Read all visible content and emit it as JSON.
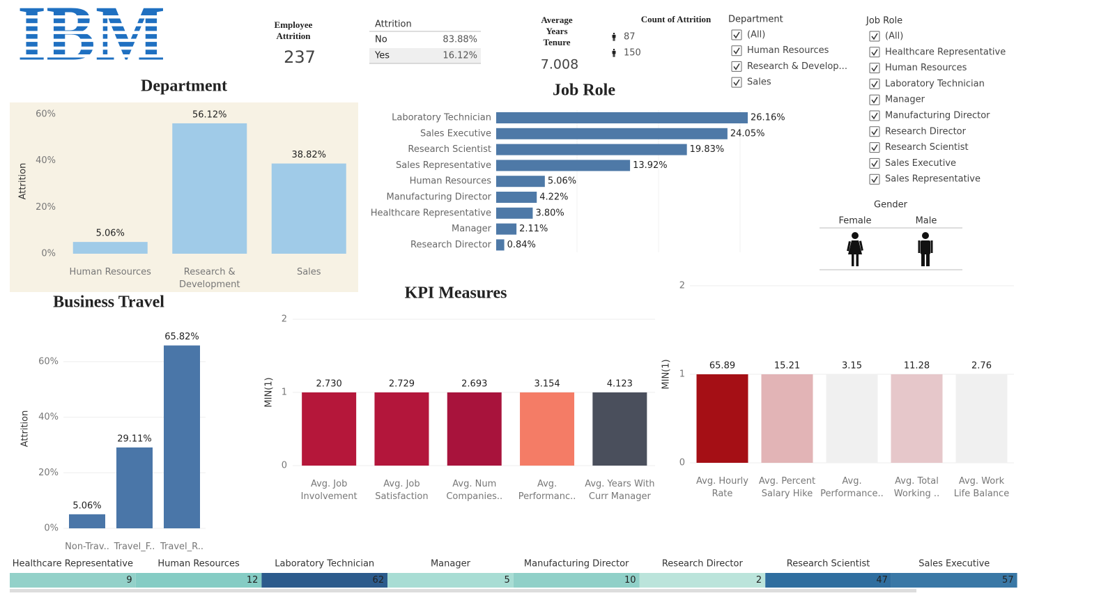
{
  "logo": "IBM",
  "employee_attrition": {
    "label": "Employee Attrition",
    "value": 237
  },
  "attrition_table": {
    "title": "Attrition",
    "rows": [
      [
        "No",
        "83.88%"
      ],
      [
        "Yes",
        "16.12%"
      ]
    ]
  },
  "average_tenure": {
    "label": "Average Years Tenure",
    "value": 7.008
  },
  "count_of_attrition": {
    "title": "Count of Attrition",
    "rows": [
      87,
      150
    ]
  },
  "department_filter": {
    "title": "Department",
    "items": [
      "(All)",
      "Human Resources",
      "Research & Develop...",
      "Sales"
    ]
  },
  "job_role_filter": {
    "title": "Job Role",
    "items": [
      "(All)",
      "Healthcare Representative",
      "Human Resources",
      "Laboratory Technician",
      "Manager",
      "Manufacturing Director",
      "Research Director",
      "Research Scientist",
      "Sales Executive",
      "Sales Representative"
    ]
  },
  "gender": {
    "title": "Gender",
    "labels": [
      "Female",
      "Male"
    ]
  },
  "chart_data": [
    {
      "type": "bar",
      "title": "Department",
      "y_label": "Attrition",
      "categories": [
        "Human Resources",
        "Research & Development",
        "Sales"
      ],
      "values": [
        5.06,
        56.12,
        38.82
      ],
      "value_labels": [
        "5.06%",
        "56.12%",
        "38.82%"
      ],
      "color": "#a0cbe8",
      "background": "#f7f2e4",
      "ylim": [
        0,
        66
      ],
      "yticks": [
        {
          "value": 0,
          "label": "0%"
        },
        {
          "value": 20,
          "label": "20%"
        },
        {
          "value": 40,
          "label": "40%"
        },
        {
          "value": 60,
          "label": "60%"
        }
      ],
      "grid": false
    },
    {
      "type": "barh",
      "title": "Job Role",
      "categories": [
        "Laboratory Technician",
        "Sales Executive",
        "Research Scientist",
        "Sales Representative",
        "Human Resources",
        "Manufacturing Director",
        "Healthcare Representative",
        "Manager",
        "Research Director"
      ],
      "values": [
        26.16,
        24.05,
        19.83,
        13.92,
        5.06,
        4.22,
        3.8,
        2.11,
        0.84
      ],
      "value_labels": [
        "26.16%",
        "24.05%",
        "19.83%",
        "13.92%",
        "5.06%",
        "4.22%",
        "3.80%",
        "2.11%",
        "0.84%"
      ],
      "color": "#4e79a7"
    },
    {
      "type": "bar",
      "title": "Business Travel",
      "y_label": "Attrition",
      "categories": [
        "Non-Trav..",
        "Travel_F..",
        "Travel_R.."
      ],
      "values": [
        5.06,
        29.11,
        65.82
      ],
      "value_labels": [
        "5.06%",
        "29.11%",
        "65.82%"
      ],
      "color": "#4a76a8",
      "ylim": [
        0,
        73
      ],
      "yticks": [
        {
          "value": 0,
          "label": "0%"
        },
        {
          "value": 20,
          "label": "20%"
        },
        {
          "value": 40,
          "label": "40%"
        },
        {
          "value": 60,
          "label": "60%"
        }
      ],
      "grid": true
    },
    {
      "type": "bar",
      "title": "KPI Measures",
      "y_label": "MIN(1)",
      "categories": [
        "Avg. Job Involvement",
        "Avg. Job Satisfaction",
        "Avg. Num Companies..",
        "Avg. Performanc..",
        "Avg. Years With Curr Manager"
      ],
      "values": [
        1,
        1,
        1,
        1,
        1
      ],
      "annotations": [
        "2.730",
        "2.729",
        "2.693",
        "3.154",
        "4.123"
      ],
      "colors": [
        "#b5173a",
        "#b3163b",
        "#a8133c",
        "#f47c66",
        "#4a4f5c"
      ],
      "ylim": [
        0,
        2
      ],
      "yticks": [
        0,
        1,
        2
      ],
      "grid": true
    },
    {
      "type": "bar",
      "y_label": "MIN(1)",
      "categories": [
        "Avg. Hourly Rate",
        "Avg. Percent Salary Hike",
        "Avg. Performance..",
        "Avg. Total Working ..",
        "Avg. Work Life Balance"
      ],
      "values": [
        1,
        1,
        1,
        1,
        1
      ],
      "annotations": [
        "65.89",
        "15.21",
        "3.15",
        "11.28",
        "2.76"
      ],
      "colors": [
        "#a50f15",
        "#e2b4b6",
        "#f0f0f0",
        "#e6c7ca",
        "#f0f0f0"
      ],
      "ylim": [
        0,
        2
      ],
      "yticks": [
        0,
        1,
        2
      ],
      "grid": true
    },
    {
      "type": "strip",
      "categories": [
        "Healthcare Representative",
        "Human Resources",
        "Laboratory Technician",
        "Manager",
        "Manufacturing Director",
        "Research Director",
        "Research Scientist",
        "Sales Executive"
      ],
      "values": [
        9,
        12,
        62,
        5,
        10,
        2,
        47,
        57
      ],
      "colors": [
        "#93d1c9",
        "#85ccc4",
        "#2c5b8c",
        "#a8ddd4",
        "#90d0c8",
        "#bbe4db",
        "#2f6e9f",
        "#3a78a6"
      ]
    }
  ]
}
